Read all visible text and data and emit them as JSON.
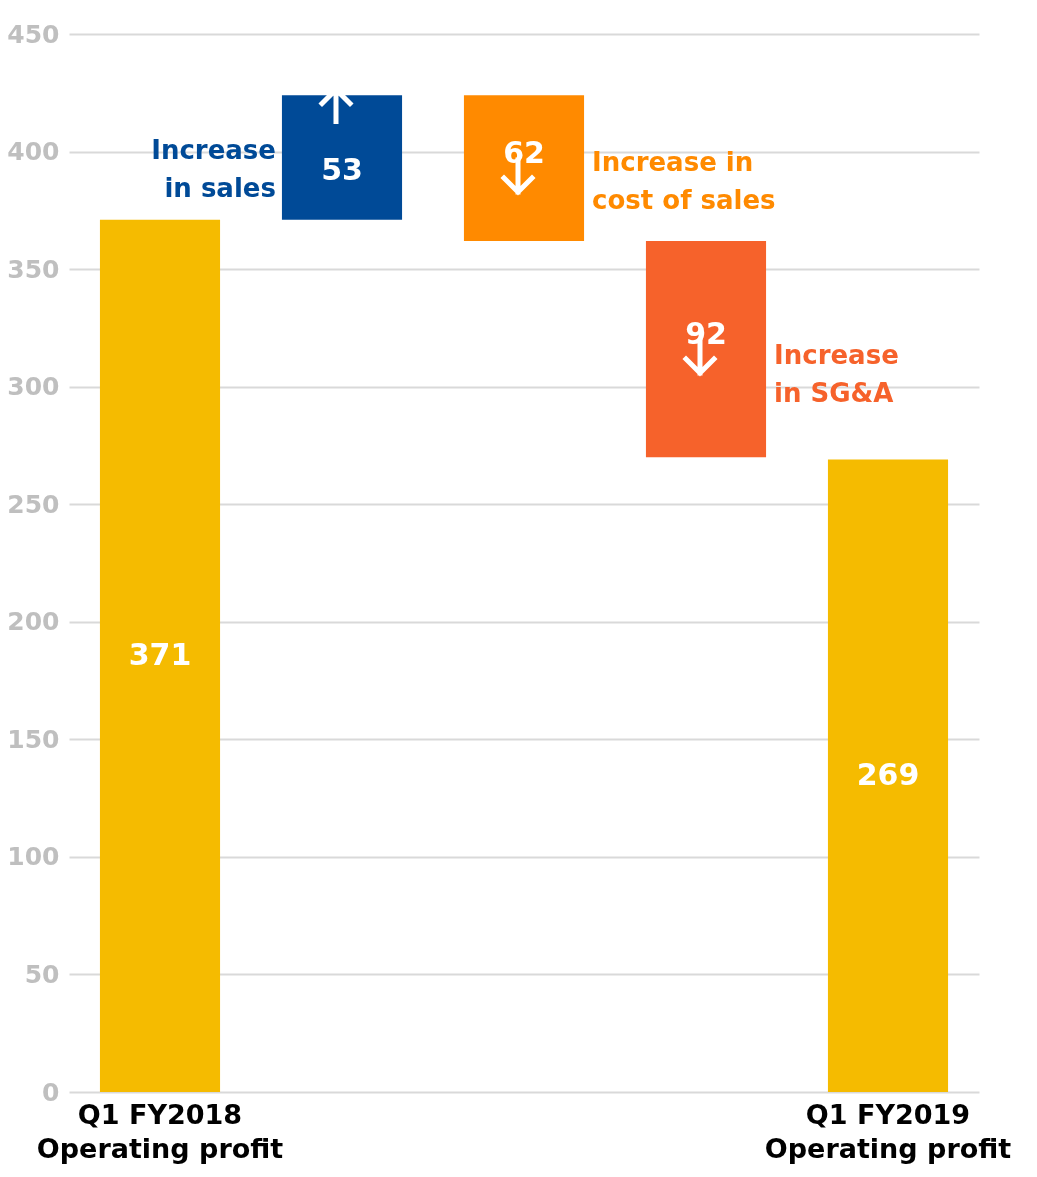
{
  "chart_data": {
    "type": "bar",
    "categories": [
      "Q1 FY2018\nOperating profit",
      null,
      null,
      null,
      "Q1 FY2019\nOperating profit"
    ],
    "values": [
      371,
      53,
      62,
      92,
      269
    ],
    "base": [
      0,
      371,
      362,
      270,
      0
    ],
    "colors": [
      "#f5bb00",
      "#004a97",
      "#ff8a00",
      "#f6622b",
      "#f5bb00"
    ],
    "data_labels": true,
    "ylim": [
      0,
      450
    ],
    "yticks": [
      0,
      50,
      100,
      150,
      200,
      250,
      300,
      350,
      400,
      450
    ],
    "grid": "y",
    "annotations": [
      "Increase\nin sales",
      "Increase in\ncost of sales",
      "Increase\nin SG&A"
    ]
  }
}
